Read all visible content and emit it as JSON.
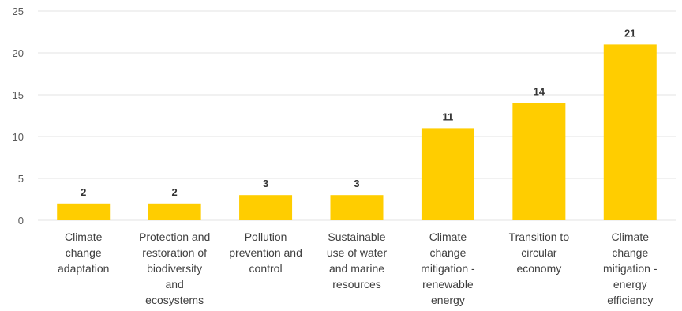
{
  "chart_data": {
    "type": "bar",
    "categories": [
      [
        "Climate",
        "change",
        "adaptation"
      ],
      [
        "Protection and",
        "restoration of",
        "biodiversity",
        "and",
        "ecosystems"
      ],
      [
        "Pollution",
        "prevention and",
        "control"
      ],
      [
        "Sustainable",
        "use of water",
        "and marine",
        "resources"
      ],
      [
        "Climate",
        "change",
        "mitigation -",
        "renewable",
        "energy"
      ],
      [
        "Transition to",
        "circular",
        "economy"
      ],
      [
        "Climate",
        "change",
        "mitigation -",
        "energy",
        "efficiency"
      ]
    ],
    "values": [
      2,
      2,
      3,
      3,
      11,
      14,
      21
    ],
    "data_labels": [
      "2",
      "2",
      "3",
      "3",
      "11",
      "14",
      "21"
    ],
    "ylim": [
      0,
      25
    ],
    "yticks": [
      0,
      5,
      10,
      15,
      20,
      25
    ],
    "ytick_labels": [
      "0",
      "5",
      "10",
      "15",
      "20",
      "25"
    ],
    "grid": true,
    "bar_color": "#FFCD00",
    "grid_color": "#e3e3e3"
  }
}
